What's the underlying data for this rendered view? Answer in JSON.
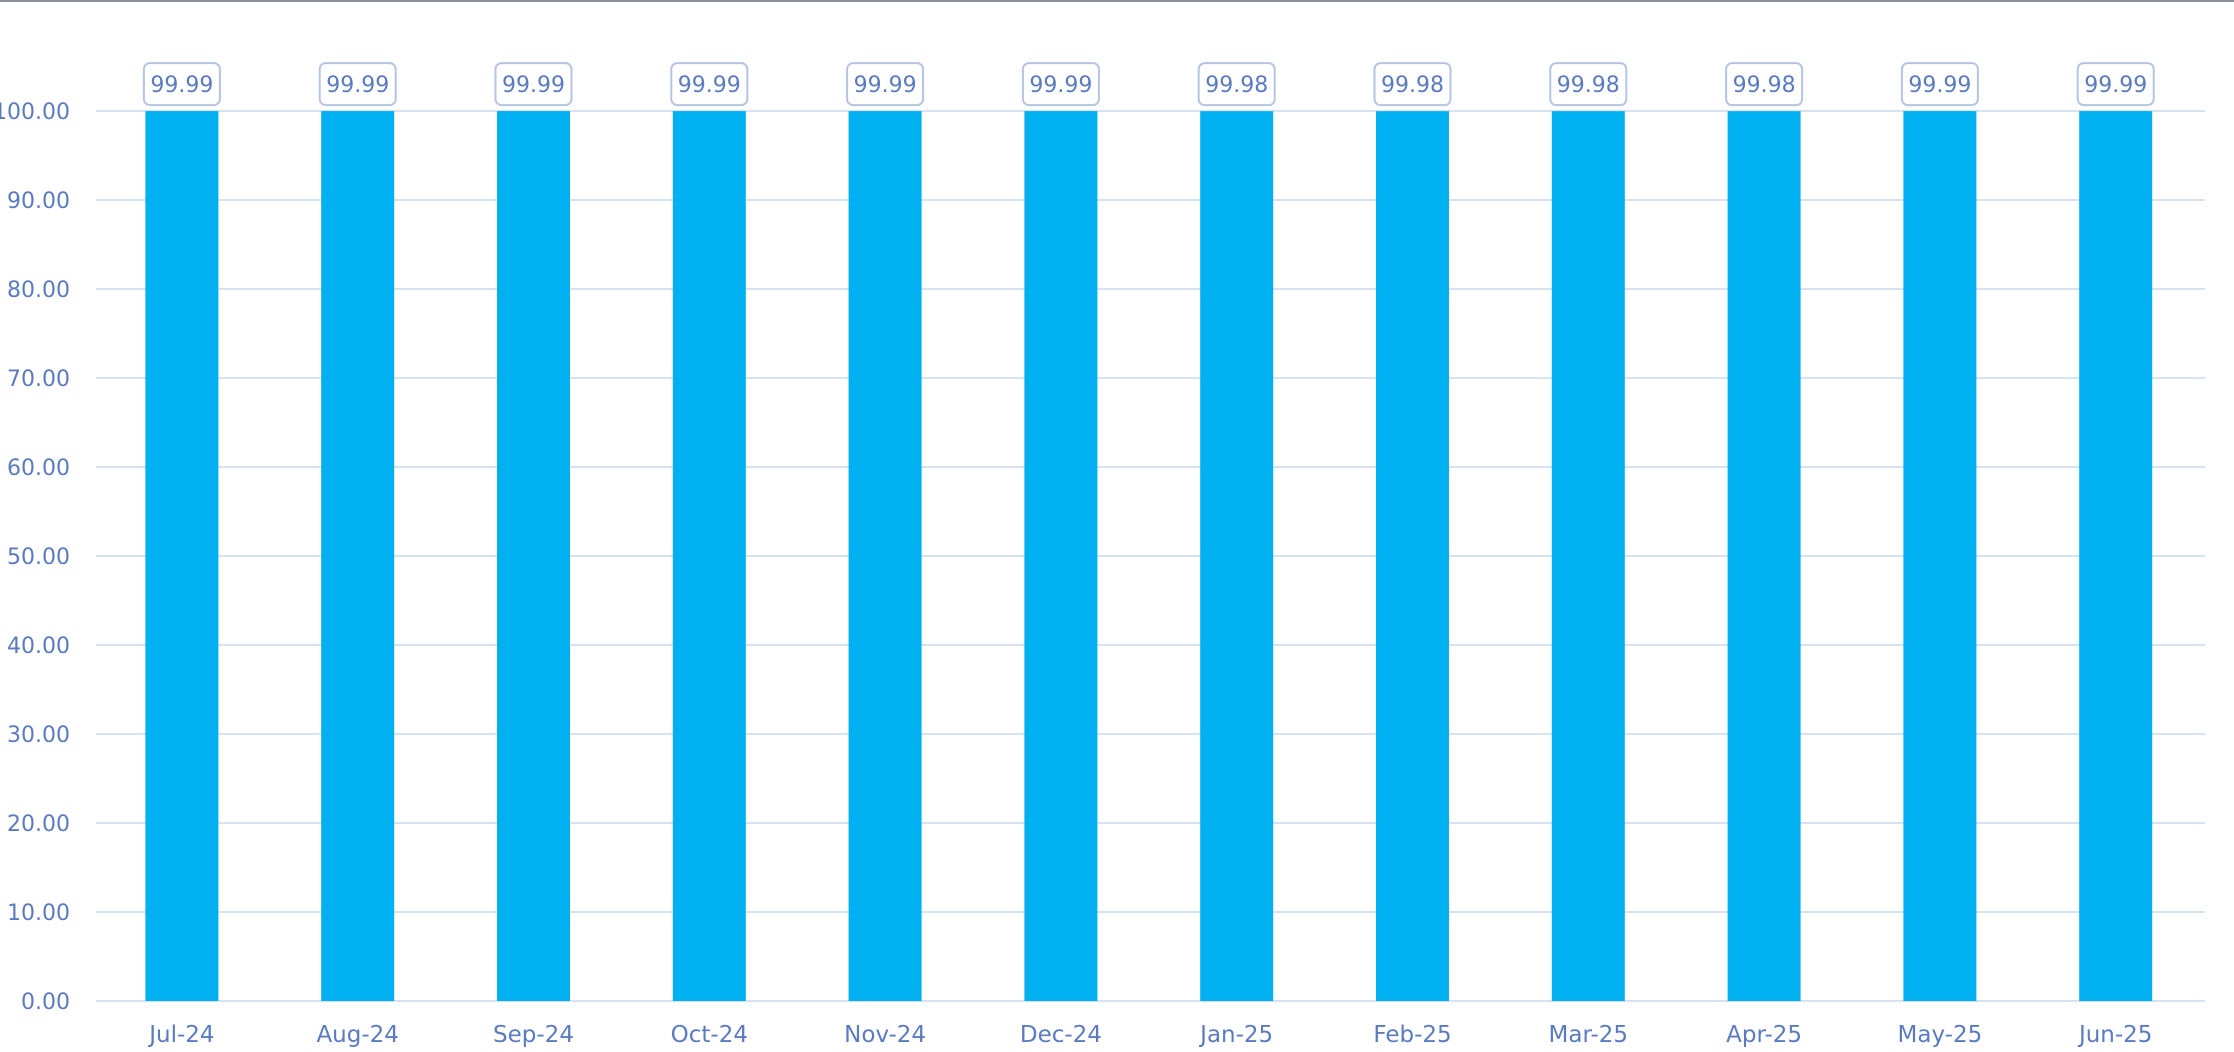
{
  "chart_data": {
    "type": "bar",
    "title": "",
    "xlabel": "",
    "ylabel": "",
    "categories": [
      "Jul-24",
      "Aug-24",
      "Sep-24",
      "Oct-24",
      "Nov-24",
      "Dec-24",
      "Jan-25",
      "Feb-25",
      "Mar-25",
      "Apr-25",
      "May-25",
      "Jun-25"
    ],
    "values": [
      99.99,
      99.99,
      99.99,
      99.99,
      99.99,
      99.99,
      99.98,
      99.98,
      99.98,
      99.98,
      99.99,
      99.99
    ],
    "data_labels": [
      "99.99",
      "99.99",
      "99.99",
      "99.99",
      "99.99",
      "99.99",
      "99.98",
      "99.98",
      "99.98",
      "99.98",
      "99.99",
      "99.99"
    ],
    "ylim": [
      0,
      100
    ],
    "yticks": [
      0,
      10,
      20,
      30,
      40,
      50,
      60,
      70,
      80,
      90,
      100
    ],
    "ytick_labels": [
      "0.00",
      "10.00",
      "20.00",
      "30.00",
      "40.00",
      "50.00",
      "60.00",
      "70.00",
      "80.00",
      "90.00",
      "100.00"
    ],
    "grid": true,
    "legend": "none",
    "colors": {
      "bar": "#00b0f0",
      "grid": "#d6e2ef",
      "text": "#5b7bc0",
      "label_border": "#b4c4e2"
    }
  }
}
